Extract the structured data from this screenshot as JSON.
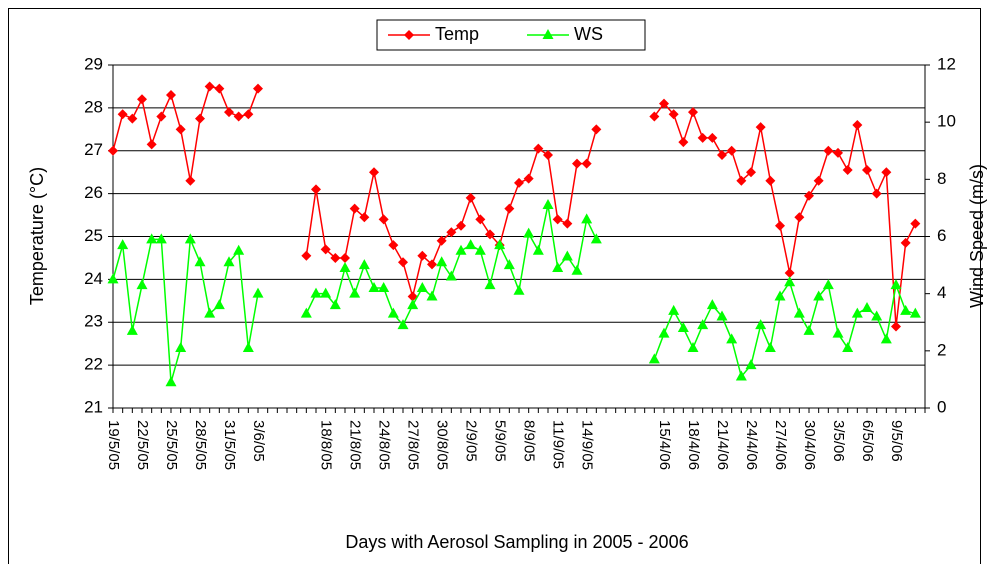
{
  "chart_data": {
    "type": "line",
    "xlabel": "Days with Aerosol Sampling in 2005 - 2006",
    "ylabel": "Temperature (°C)",
    "y2label": "Wind Speed (m/s)",
    "categories": [
      "19/5/05",
      null,
      null,
      "22/5/05",
      null,
      null,
      "25/5/05",
      null,
      null,
      "28/5/05",
      null,
      null,
      "31/5/05",
      null,
      null,
      "3/6/05",
      null,
      null,
      null,
      null,
      null,
      null,
      "18/8/05",
      null,
      null,
      "21/8/05",
      null,
      null,
      "24/8/05",
      null,
      null,
      "27/8/05",
      null,
      null,
      "30/8/05",
      null,
      null,
      "2/9/05",
      null,
      null,
      "5/9/05",
      null,
      null,
      "8/9/05",
      null,
      null,
      "11/9/05",
      null,
      null,
      "14/9/05",
      null,
      null,
      null,
      null,
      null,
      null,
      null,
      "15/4/06",
      null,
      null,
      "18/4/06",
      null,
      null,
      "21/4/06",
      null,
      null,
      "24/4/06",
      null,
      null,
      "27/4/06",
      null,
      null,
      "30/4/06",
      null,
      null,
      "3/5/06",
      null,
      null,
      "6/5/06",
      null,
      null,
      "9/5/06",
      null,
      null,
      null
    ],
    "series": [
      {
        "name": "Temp",
        "color": "#ff0000",
        "marker": "diamond",
        "axis": "y",
        "values": [
          27.0,
          27.85,
          27.75,
          28.2,
          27.15,
          27.8,
          28.3,
          27.5,
          26.3,
          27.75,
          28.5,
          28.45,
          27.9,
          27.8,
          27.85,
          28.45,
          null,
          null,
          null,
          null,
          24.55,
          26.1,
          24.7,
          24.5,
          24.5,
          25.65,
          25.45,
          26.5,
          25.4,
          24.8,
          24.4,
          23.6,
          24.55,
          24.35,
          24.9,
          25.1,
          25.25,
          25.9,
          25.4,
          25.05,
          24.8,
          25.65,
          26.25,
          26.35,
          27.05,
          26.9,
          25.4,
          25.3,
          26.7,
          26.7,
          27.5,
          null,
          null,
          null,
          null,
          null,
          27.8,
          28.1,
          27.85,
          27.2,
          27.9,
          27.3,
          27.3,
          26.9,
          27.0,
          26.3,
          26.5,
          27.55,
          26.3,
          25.25,
          24.15,
          25.45,
          25.95,
          26.3,
          27.0,
          26.95,
          26.55,
          27.6,
          26.55,
          26.0,
          26.5,
          22.9,
          24.85,
          25.3,
          null
        ]
      },
      {
        "name": "WS",
        "color": "#00ff00",
        "marker": "triangle",
        "axis": "y2",
        "values": [
          4.5,
          5.7,
          2.7,
          4.3,
          5.9,
          5.9,
          0.9,
          2.1,
          5.9,
          5.1,
          3.3,
          3.6,
          5.1,
          5.5,
          2.1,
          4.0,
          null,
          null,
          null,
          null,
          3.3,
          4.0,
          4.0,
          3.6,
          4.9,
          4.0,
          5.0,
          4.2,
          4.2,
          3.3,
          2.9,
          3.6,
          4.2,
          3.9,
          5.1,
          4.6,
          5.5,
          5.7,
          5.5,
          4.3,
          5.7,
          5.0,
          4.1,
          6.1,
          5.5,
          7.1,
          4.9,
          5.3,
          4.8,
          6.6,
          5.9,
          null,
          null,
          null,
          null,
          null,
          1.7,
          2.6,
          3.4,
          2.8,
          2.1,
          2.9,
          3.6,
          3.2,
          2.4,
          1.1,
          1.5,
          2.9,
          2.1,
          3.9,
          4.4,
          3.3,
          2.7,
          3.9,
          4.3,
          2.6,
          2.1,
          3.3,
          3.5,
          3.2,
          2.4,
          4.3,
          3.4,
          3.3,
          null
        ]
      }
    ],
    "ylim": [
      21,
      29
    ],
    "yticks": [
      21,
      22,
      23,
      24,
      25,
      26,
      27,
      28,
      29
    ],
    "y2lim": [
      0,
      12
    ],
    "y2ticks": [
      0,
      2,
      4,
      6,
      8,
      10,
      12
    ],
    "grid": true,
    "legend": "top"
  }
}
